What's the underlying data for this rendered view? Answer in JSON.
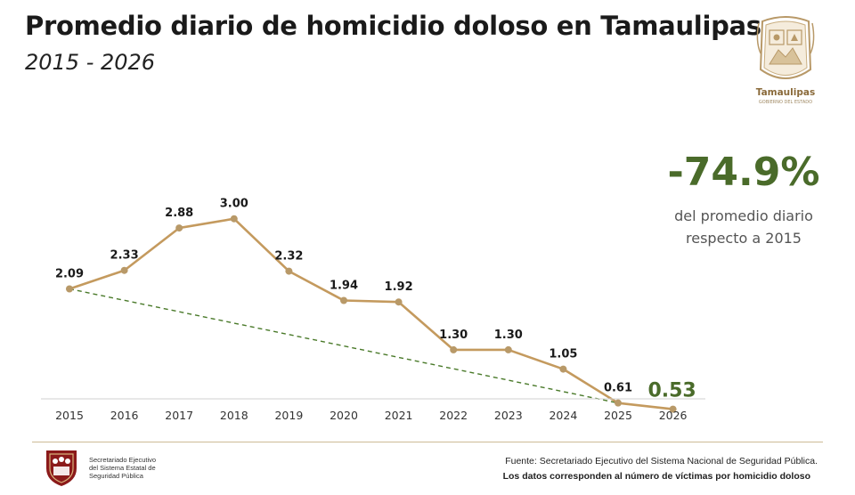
{
  "header": {
    "title": "Promedio diario de homicidio doloso en Tamaulipas",
    "subtitle": "2015 - 2026"
  },
  "logo": {
    "name": "Tamaulipas",
    "tagline": "GOBIERNO DEL ESTADO"
  },
  "highlight": {
    "change": "-74.9%",
    "desc_line1": "del promedio diario",
    "desc_line2": "respecto a 2015"
  },
  "chart_data": {
    "type": "line",
    "title": "Promedio diario de homicidio doloso en Tamaulipas",
    "subtitle": "2015 - 2026",
    "categories": [
      "2015",
      "2016",
      "2017",
      "2018",
      "2019",
      "2020",
      "2021",
      "2022",
      "2023",
      "2024",
      "2025",
      "2026"
    ],
    "values": [
      2.09,
      2.33,
      2.88,
      3.0,
      2.32,
      1.94,
      1.92,
      1.3,
      1.3,
      1.05,
      0.61,
      0.53
    ],
    "labels": [
      "2.09",
      "2.33",
      "2.88",
      "3.00",
      "2.32",
      "1.94",
      "1.92",
      "1.30",
      "1.30",
      "1.05",
      "0.61",
      "0.53"
    ],
    "highlight_last_label": true,
    "trend_line": {
      "from": "2015",
      "to": "2025",
      "style": "dashed"
    },
    "ylim": [
      0,
      3.2
    ],
    "grid": false,
    "line_color": "#c49a5e",
    "point_color": "#b89968",
    "trend_color": "#4a7a2a",
    "highlight_color": "#4a6b2a"
  },
  "footer": {
    "org_line1": "Secretariado Ejecutivo",
    "org_line2": "del Sistema Estatal de",
    "org_line3": "Seguridad Pública",
    "source": "Fuente: Secretariado Ejecutivo del Sistema Nacional de Seguridad Pública.",
    "note": "Los datos corresponden al número de víctimas por homicidio doloso"
  },
  "colors": {
    "accent_gold": "#c49a5e",
    "accent_green": "#4a6b2a",
    "logo_red": "#8b1a1a"
  }
}
